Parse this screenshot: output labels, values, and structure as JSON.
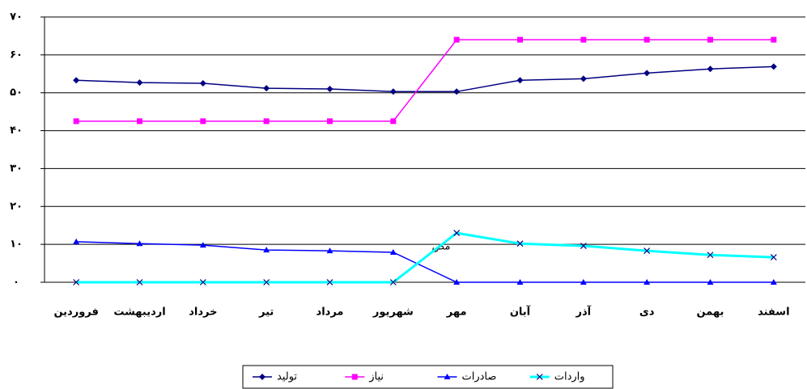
{
  "chart_data": {
    "type": "line",
    "categories": [
      "فروردین",
      "اردیبهشت",
      "خرداد",
      "تیر",
      "مرداد",
      "شهریور",
      "مهر",
      "آبان",
      "آذر",
      "دی",
      "بهمن",
      "اسفند"
    ],
    "series": [
      {
        "name": "تولید",
        "color": "#000080",
        "marker": "diamond",
        "values": [
          53.3,
          52.7,
          52.5,
          51.2,
          51.0,
          50.3,
          50.3,
          53.3,
          53.7,
          55.2,
          56.3,
          56.9
        ]
      },
      {
        "name": "نیاز",
        "color": "#ff00ff",
        "marker": "square",
        "values": [
          42.5,
          42.5,
          42.5,
          42.5,
          42.5,
          42.5,
          64,
          64,
          64,
          64,
          64,
          64
        ]
      },
      {
        "name": "صادرات",
        "color": "#0000ff",
        "marker": "triangle",
        "values": [
          10.7,
          10.2,
          9.8,
          8.5,
          8.3,
          7.9,
          0,
          0,
          0,
          0,
          0,
          0
        ]
      },
      {
        "name": "واردات",
        "color": "#00ffff",
        "marker": "x",
        "values": [
          0,
          0,
          0,
          0,
          0,
          0,
          13.0,
          10.2,
          9.6,
          8.3,
          7.2,
          6.6
        ]
      }
    ],
    "annotation": "مص",
    "ylim": [
      0,
      70
    ],
    "yticks": [
      {
        "value": 0,
        "label": "۰"
      },
      {
        "value": 10,
        "label": "۱۰"
      },
      {
        "value": 20,
        "label": "۲۰"
      },
      {
        "value": 30,
        "label": "۳۰"
      },
      {
        "value": 40,
        "label": "۴۰"
      },
      {
        "value": 50,
        "label": "۵۰"
      },
      {
        "value": 60,
        "label": "۶۰"
      },
      {
        "value": 70,
        "label": "۷۰"
      }
    ],
    "grid": true,
    "legend": "bottom"
  }
}
